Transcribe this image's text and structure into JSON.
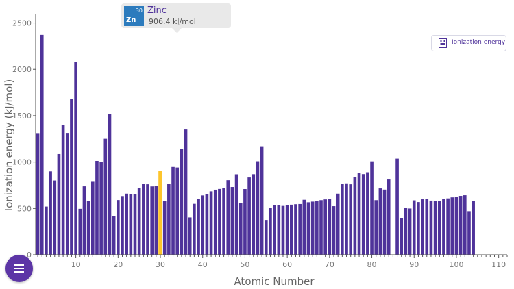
{
  "chart_data": {
    "type": "bar",
    "title": "",
    "xlabel": "Atomic Number",
    "ylabel": "Ionization energy (kJ/mol)",
    "x": [
      1,
      2,
      3,
      4,
      5,
      6,
      7,
      8,
      9,
      10,
      11,
      12,
      13,
      14,
      15,
      16,
      17,
      18,
      19,
      20,
      21,
      22,
      23,
      24,
      25,
      26,
      27,
      28,
      29,
      30,
      31,
      32,
      33,
      34,
      35,
      36,
      37,
      38,
      39,
      40,
      41,
      42,
      43,
      44,
      45,
      46,
      47,
      48,
      49,
      50,
      51,
      52,
      53,
      54,
      55,
      56,
      57,
      58,
      59,
      60,
      61,
      62,
      63,
      64,
      65,
      66,
      67,
      68,
      69,
      70,
      71,
      72,
      73,
      74,
      75,
      76,
      77,
      78,
      79,
      80,
      81,
      82,
      83,
      84,
      85,
      86,
      87,
      88,
      89,
      90,
      91,
      92,
      93,
      94,
      95,
      96,
      97,
      98,
      99,
      100,
      101,
      102,
      103,
      104
    ],
    "values": [
      1312,
      2372,
      520,
      899,
      801,
      1086,
      1402,
      1314,
      1681,
      2081,
      496,
      738,
      578,
      787,
      1012,
      1000,
      1251,
      1521,
      419,
      590,
      633,
      659,
      651,
      653,
      717,
      762,
      760,
      737,
      745,
      906.4,
      579,
      762,
      947,
      941,
      1140,
      1351,
      403,
      549,
      600,
      640,
      652,
      684,
      702,
      710,
      720,
      804,
      731,
      868,
      558,
      709,
      834,
      869,
      1008,
      1170,
      376,
      503,
      538,
      534,
      527,
      533,
      540,
      545,
      547,
      593,
      566,
      573,
      581,
      589,
      597,
      603,
      524,
      659,
      761,
      770,
      760,
      840,
      880,
      870,
      890,
      1007,
      589,
      716,
      703,
      812,
      null,
      1037,
      393,
      509,
      499,
      587,
      568,
      598,
      604,
      584,
      578,
      581,
      601,
      608,
      619,
      627,
      635,
      642,
      470,
      580
    ],
    "highlight_index": 29,
    "xlim": [
      0.5,
      112
    ],
    "ylim": [
      0,
      2600
    ],
    "xticks": [
      10,
      20,
      30,
      40,
      50,
      60,
      70,
      80,
      90,
      100,
      110
    ],
    "yticks": [
      0,
      500,
      1000,
      1500,
      2000,
      2500
    ],
    "colors": {
      "bar": "#4f339a",
      "highlight": "#fdc52c",
      "axis": "#555555"
    },
    "grid": false
  },
  "tooltip": {
    "element_name": "Zinc",
    "symbol": "Zn",
    "atomic_number": "30",
    "value_text": "906.4 kJ/mol",
    "tile_color": "#2c7bbd"
  },
  "legend_button": {
    "label": "Ionization energy",
    "icon": "periodic-table-icon"
  },
  "menu_button": {
    "icon": "hamburger-menu-icon"
  }
}
